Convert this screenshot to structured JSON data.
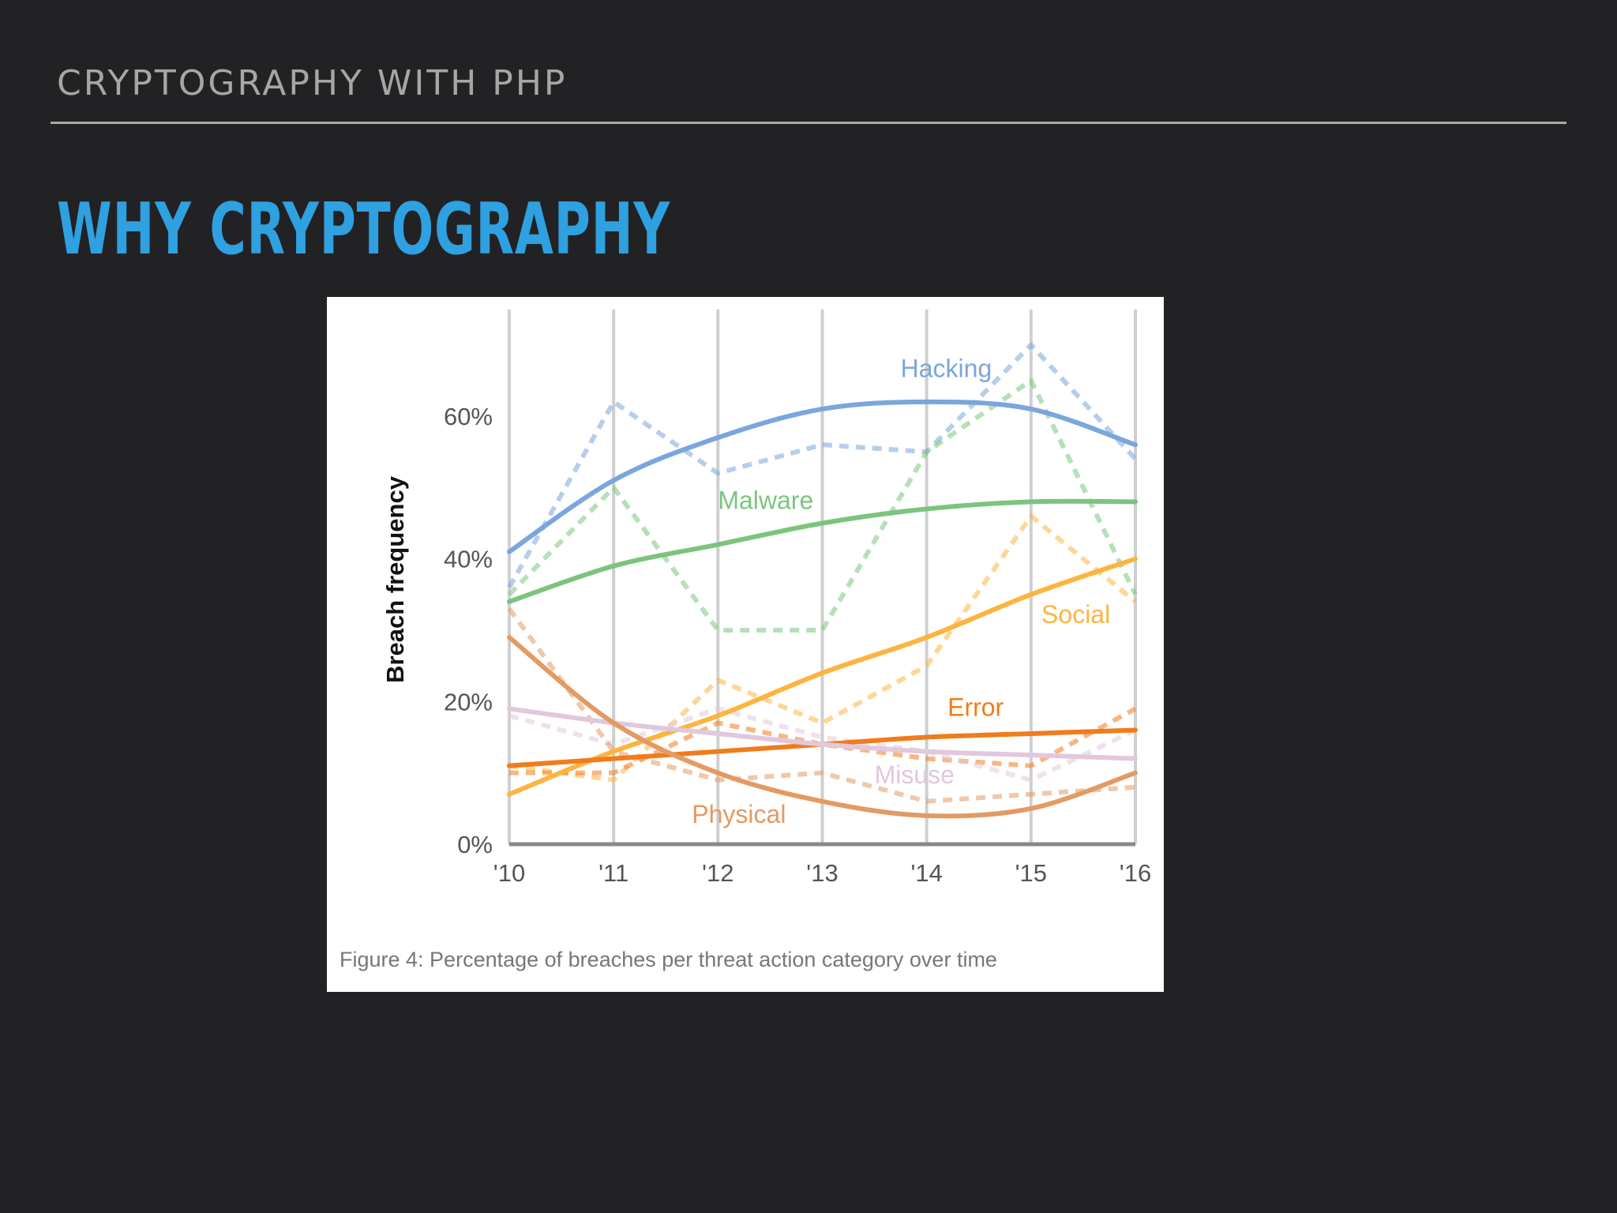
{
  "header": {
    "title": "CRYPTOGRAPHY WITH PHP"
  },
  "slide": {
    "title": "WHY CRYPTOGRAPHY"
  },
  "figure": {
    "caption": "Figure 4: Percentage of breaches per threat action category over time"
  },
  "chart_data": {
    "type": "line",
    "ylabel": "Breach frequency",
    "xlabel": "",
    "categories": [
      "'10",
      "'11",
      "'12",
      "'13",
      "'14",
      "'15",
      "'16"
    ],
    "yticks": [
      "0%",
      "20%",
      "40%",
      "60%"
    ],
    "ylim": [
      0,
      75
    ],
    "grid": "vertical",
    "legend": "inline labels",
    "series": [
      {
        "name": "Hacking",
        "color": "#7aa6dc",
        "trend": [
          41,
          51,
          57,
          61,
          62,
          61,
          56
        ],
        "actual": [
          36,
          62,
          52,
          56,
          55,
          70,
          54
        ]
      },
      {
        "name": "Malware",
        "color": "#7cc47e",
        "trend": [
          34,
          39,
          42,
          45,
          47,
          48,
          48
        ],
        "actual": [
          35,
          50,
          30,
          30,
          55,
          65,
          35
        ]
      },
      {
        "name": "Social",
        "color": "#fdb43f",
        "trend": [
          7,
          13,
          18,
          24,
          29,
          35,
          40
        ],
        "actual": [
          11,
          9,
          23,
          17,
          25,
          46,
          34
        ]
      },
      {
        "name": "Error",
        "color": "#f07c1c",
        "trend": [
          11,
          12,
          13,
          14,
          15,
          15.5,
          16
        ],
        "actual": [
          10,
          10,
          17,
          14,
          12,
          11,
          19
        ]
      },
      {
        "name": "Misuse",
        "color": "#e2c8dc",
        "trend": [
          19,
          17,
          15.5,
          14,
          13,
          12.5,
          12
        ],
        "actual": [
          18,
          14,
          19,
          15,
          13,
          9,
          16
        ]
      },
      {
        "name": "Physical",
        "color": "#e39a63",
        "trend": [
          29,
          17,
          10,
          6,
          4,
          5,
          10
        ],
        "actual": [
          33,
          13,
          9,
          10,
          6,
          7,
          8
        ]
      }
    ],
    "labels": {
      "Hacking": {
        "text": "Hacking",
        "at_x": 3.75,
        "at_y": 65.5
      },
      "Malware": {
        "text": "Malware",
        "at_x": 2.0,
        "at_y": 47
      },
      "Social": {
        "text": "Social",
        "at_x": 5.1,
        "at_y": 31
      },
      "Error": {
        "text": "Error",
        "at_x": 4.2,
        "at_y": 18
      },
      "Misuse": {
        "text": "Misuse",
        "at_x": 3.5,
        "at_y": 8.5
      },
      "Physical": {
        "text": "Physical",
        "at_x": 1.75,
        "at_y": 3
      }
    }
  }
}
